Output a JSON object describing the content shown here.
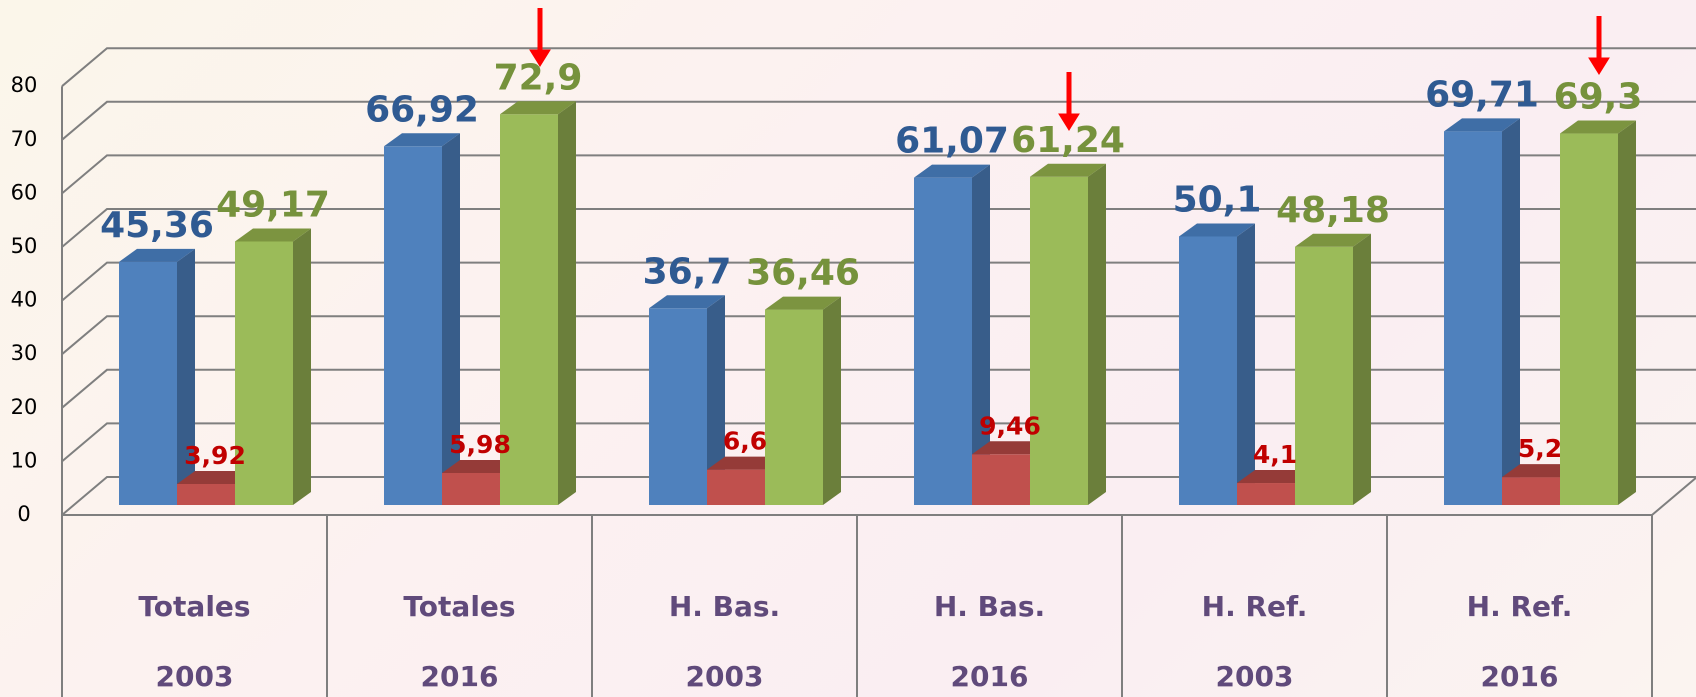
{
  "chart_data": {
    "type": "bar3d",
    "categories": [
      [
        "Totales",
        "2003"
      ],
      [
        "Totales",
        "2016"
      ],
      [
        "H. Bas.",
        "2003"
      ],
      [
        "H. Bas.",
        "2016"
      ],
      [
        "H. Ref.",
        "2003"
      ],
      [
        "H. Ref.",
        "2016"
      ]
    ],
    "series": [
      {
        "color": "#4f81bd",
        "side_color": "#385d8a",
        "top_color": "#3f6ea6",
        "label_color": "#2f5a92",
        "values": [
          45.36,
          66.92,
          36.7,
          61.07,
          50.1,
          69.71
        ],
        "value_labels": [
          "45,36",
          "66,92",
          "36,7",
          "61,07",
          "50,1",
          "69,71"
        ]
      },
      {
        "color": "#c0504d",
        "side_color": "#8c3836",
        "top_color": "#953b38",
        "label_color": "#c00000",
        "values": [
          3.92,
          5.98,
          6.6,
          9.46,
          4.1,
          5.2
        ],
        "value_labels": [
          "3,92",
          "5,98",
          "6,6",
          "9,46",
          "4,1",
          "5,2"
        ]
      },
      {
        "color": "#9bbb59",
        "side_color": "#6b7f3b",
        "top_color": "#7c9440",
        "label_color": "#76923c",
        "values": [
          49.17,
          72.9,
          36.46,
          61.24,
          48.18,
          69.3
        ],
        "value_labels": [
          "49,17",
          "72,9",
          "36,46",
          "61,24",
          "48,18",
          "69,3"
        ]
      }
    ],
    "ylim": [
      0,
      80
    ],
    "yticks": [
      0,
      10,
      20,
      30,
      40,
      50,
      60,
      70,
      80
    ],
    "grid": true
  }
}
